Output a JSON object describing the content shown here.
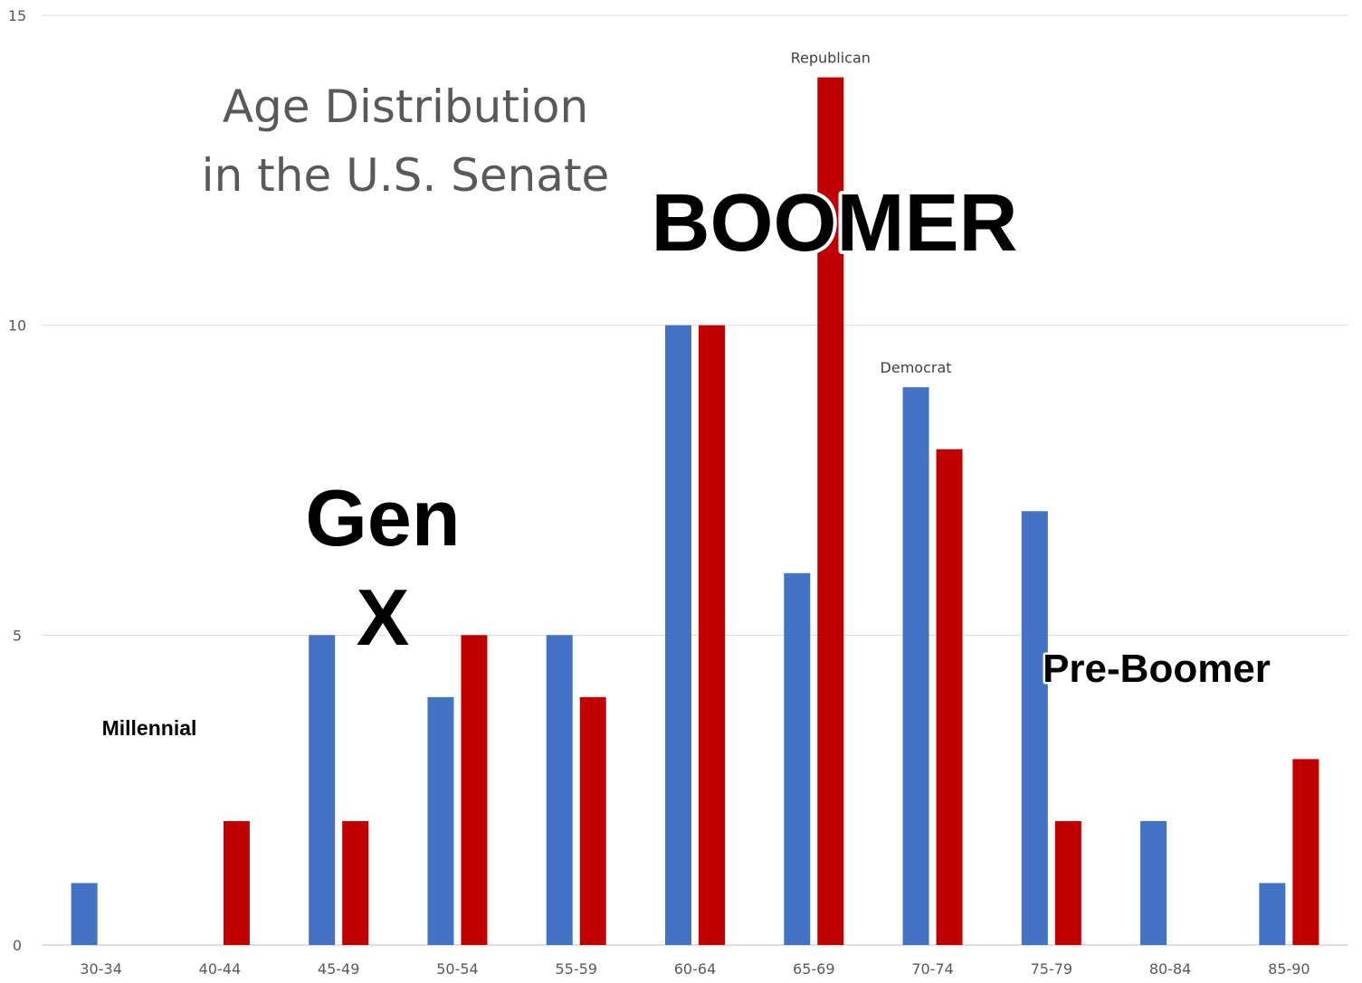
{
  "chart_data": {
    "type": "bar",
    "title_lines": [
      "Age Distribution",
      "in the U.S. Senate"
    ],
    "categories": [
      "30-34",
      "40-44",
      "45-49",
      "50-54",
      "55-59",
      "60-64",
      "65-69",
      "70-74",
      "75-79",
      "80-84",
      "85-90"
    ],
    "series": [
      {
        "name": "Democrat",
        "color": "#4472C4",
        "values": [
          1,
          0,
          5,
          4,
          5,
          10,
          6,
          9,
          7,
          2,
          1
        ]
      },
      {
        "name": "Republican",
        "color": "#C00000",
        "values": [
          0,
          2,
          2,
          5,
          4,
          10,
          14,
          8,
          2,
          0,
          3
        ]
      }
    ],
    "ylim": [
      0,
      15
    ],
    "yticks": [
      0,
      5,
      10,
      15
    ],
    "grid": true,
    "legend": "labels placed above bars",
    "annotations": [
      {
        "text": "Millennial",
        "size": "small"
      },
      {
        "text": "Gen",
        "size": "large"
      },
      {
        "text": "X",
        "size": "large"
      },
      {
        "text": "BOOMER",
        "size": "xlarge"
      },
      {
        "text": "Pre-Boomer",
        "size": "medium"
      }
    ]
  }
}
